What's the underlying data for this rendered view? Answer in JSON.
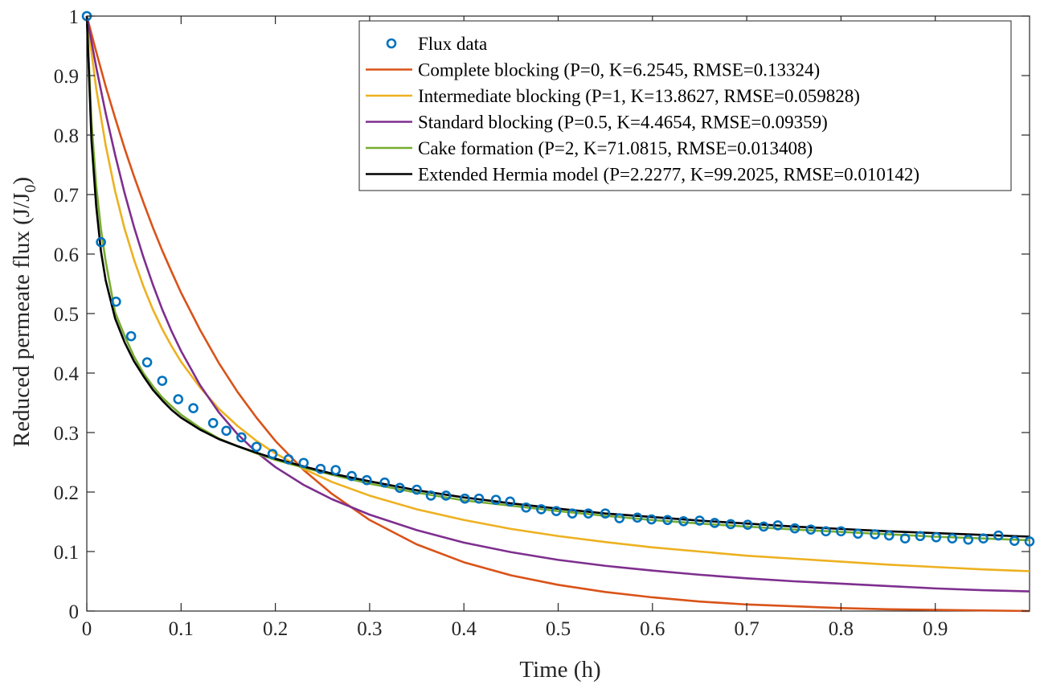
{
  "chart_data": {
    "type": "line",
    "xlabel": "Time (h)",
    "ylabel_main": "Reduced permeate flux (J/J",
    "ylabel_sub": "0",
    "ylabel_close": ")",
    "xlim": [
      0,
      1
    ],
    "ylim": [
      0,
      1
    ],
    "x_ticks": [
      0,
      0.1,
      0.2,
      0.3,
      0.4,
      0.5,
      0.6,
      0.7,
      0.8,
      0.9
    ],
    "x_tick_labels": [
      "0",
      "0.1",
      "0.2",
      "0.3",
      "0.4",
      "0.5",
      "0.6",
      "0.7",
      "0.8",
      "0.9"
    ],
    "y_ticks": [
      0,
      0.1,
      0.2,
      0.3,
      0.4,
      0.5,
      0.6,
      0.7,
      0.8,
      0.9,
      1
    ],
    "y_tick_labels": [
      "0",
      "0.1",
      "0.2",
      "0.3",
      "0.4",
      "0.5",
      "0.6",
      "0.7",
      "0.8",
      "0.9",
      "1"
    ],
    "grid": false,
    "legend_position": "top-right",
    "scatter": {
      "name": "Flux data",
      "color": "#0072BD",
      "x": [
        0,
        0.015,
        0.031,
        0.047,
        0.064,
        0.08,
        0.097,
        0.113,
        0.134,
        0.148,
        0.164,
        0.18,
        0.197,
        0.214,
        0.23,
        0.248,
        0.264,
        0.281,
        0.297,
        0.316,
        0.332,
        0.35,
        0.365,
        0.381,
        0.401,
        0.416,
        0.434,
        0.449,
        0.466,
        0.482,
        0.498,
        0.515,
        0.532,
        0.55,
        0.565,
        0.584,
        0.599,
        0.616,
        0.633,
        0.65,
        0.666,
        0.683,
        0.701,
        0.718,
        0.733,
        0.751,
        0.768,
        0.784,
        0.8,
        0.818,
        0.836,
        0.851,
        0.868,
        0.884,
        0.901,
        0.918,
        0.935,
        0.951,
        0.967,
        0.984,
        1.0
      ],
      "y": [
        1.0,
        0.62,
        0.52,
        0.462,
        0.418,
        0.387,
        0.356,
        0.341,
        0.316,
        0.303,
        0.292,
        0.276,
        0.264,
        0.255,
        0.249,
        0.239,
        0.237,
        0.227,
        0.22,
        0.216,
        0.207,
        0.204,
        0.194,
        0.194,
        0.189,
        0.189,
        0.187,
        0.184,
        0.174,
        0.171,
        0.168,
        0.164,
        0.164,
        0.164,
        0.156,
        0.157,
        0.154,
        0.153,
        0.151,
        0.152,
        0.148,
        0.146,
        0.145,
        0.142,
        0.144,
        0.139,
        0.137,
        0.134,
        0.134,
        0.13,
        0.129,
        0.127,
        0.122,
        0.126,
        0.124,
        0.122,
        0.12,
        0.122,
        0.127,
        0.118,
        0.117
      ]
    },
    "series": [
      {
        "name": "Complete blocking (P=0, K=6.2545, RMSE=0.13324)",
        "color": "#D95319",
        "x": [
          0,
          0.01,
          0.02,
          0.03,
          0.04,
          0.05,
          0.06,
          0.07,
          0.08,
          0.09,
          0.1,
          0.12,
          0.14,
          0.16,
          0.18,
          0.2,
          0.23,
          0.26,
          0.3,
          0.35,
          0.4,
          0.45,
          0.5,
          0.55,
          0.6,
          0.65,
          0.7,
          0.75,
          0.8,
          0.85,
          0.9,
          0.95,
          1.0
        ],
        "y": [
          1.0,
          0.94,
          0.882,
          0.829,
          0.778,
          0.731,
          0.687,
          0.645,
          0.606,
          0.57,
          0.535,
          0.473,
          0.417,
          0.368,
          0.325,
          0.286,
          0.237,
          0.197,
          0.153,
          0.112,
          0.082,
          0.06,
          0.044,
          0.032,
          0.023,
          0.016,
          0.011,
          0.008,
          0.005,
          0.003,
          0.002,
          0.001,
          0.0
        ]
      },
      {
        "name": "Intermediate blocking (P=1, K=13.8627, RMSE=0.059828)",
        "color": "#EDB120",
        "x": [
          0,
          0.01,
          0.02,
          0.03,
          0.04,
          0.05,
          0.06,
          0.07,
          0.08,
          0.09,
          0.1,
          0.12,
          0.14,
          0.16,
          0.18,
          0.2,
          0.23,
          0.26,
          0.3,
          0.35,
          0.4,
          0.45,
          0.5,
          0.55,
          0.6,
          0.65,
          0.7,
          0.75,
          0.8,
          0.85,
          0.9,
          0.95,
          1.0
        ],
        "y": [
          1.0,
          0.878,
          0.783,
          0.706,
          0.643,
          0.591,
          0.546,
          0.507,
          0.474,
          0.445,
          0.419,
          0.376,
          0.34,
          0.311,
          0.286,
          0.265,
          0.239,
          0.217,
          0.194,
          0.171,
          0.153,
          0.138,
          0.126,
          0.116,
          0.107,
          0.1,
          0.093,
          0.088,
          0.083,
          0.078,
          0.074,
          0.07,
          0.067
        ]
      },
      {
        "name": "Standard blocking (P=0.5, K=4.4654, RMSE=0.09359)",
        "color": "#7E2F8E",
        "x": [
          0,
          0.01,
          0.02,
          0.03,
          0.04,
          0.05,
          0.06,
          0.07,
          0.08,
          0.09,
          0.1,
          0.12,
          0.14,
          0.16,
          0.18,
          0.2,
          0.23,
          0.26,
          0.3,
          0.35,
          0.4,
          0.45,
          0.5,
          0.55,
          0.6,
          0.65,
          0.7,
          0.75,
          0.8,
          0.85,
          0.9,
          0.95,
          1.0
        ],
        "y": [
          1.0,
          0.914,
          0.837,
          0.767,
          0.703,
          0.646,
          0.595,
          0.549,
          0.507,
          0.47,
          0.437,
          0.38,
          0.334,
          0.297,
          0.267,
          0.242,
          0.212,
          0.188,
          0.162,
          0.136,
          0.115,
          0.099,
          0.086,
          0.076,
          0.068,
          0.061,
          0.055,
          0.05,
          0.046,
          0.042,
          0.038,
          0.035,
          0.033
        ]
      },
      {
        "name": "Cake formation (P=2, K=71.0815, RMSE=0.013408)",
        "color": "#77AC30",
        "x": [
          0,
          0.005,
          0.01,
          0.015,
          0.02,
          0.03,
          0.04,
          0.05,
          0.06,
          0.07,
          0.08,
          0.09,
          0.1,
          0.12,
          0.14,
          0.16,
          0.18,
          0.2,
          0.23,
          0.26,
          0.3,
          0.35,
          0.4,
          0.45,
          0.5,
          0.55,
          0.6,
          0.65,
          0.7,
          0.75,
          0.8,
          0.85,
          0.9,
          0.95,
          1.0
        ],
        "y": [
          1.0,
          0.822,
          0.714,
          0.642,
          0.588,
          0.502,
          0.463,
          0.428,
          0.4,
          0.378,
          0.359,
          0.344,
          0.33,
          0.308,
          0.29,
          0.277,
          0.265,
          0.254,
          0.241,
          0.229,
          0.214,
          0.199,
          0.186,
          0.177,
          0.168,
          0.16,
          0.153,
          0.147,
          0.142,
          0.137,
          0.133,
          0.129,
          0.125,
          0.122,
          0.119
        ]
      },
      {
        "name": "Extended Hermia model (P=2.2277, K=99.2025, RMSE=0.010142)",
        "color": "#000000",
        "x": [
          0,
          0.005,
          0.01,
          0.015,
          0.02,
          0.03,
          0.04,
          0.05,
          0.06,
          0.07,
          0.08,
          0.09,
          0.1,
          0.12,
          0.14,
          0.16,
          0.18,
          0.2,
          0.23,
          0.26,
          0.3,
          0.35,
          0.4,
          0.45,
          0.5,
          0.55,
          0.6,
          0.65,
          0.7,
          0.75,
          0.8,
          0.85,
          0.9,
          0.95,
          1.0
        ],
        "y": [
          1.0,
          0.79,
          0.68,
          0.605,
          0.556,
          0.492,
          0.452,
          0.42,
          0.395,
          0.372,
          0.354,
          0.338,
          0.325,
          0.305,
          0.289,
          0.277,
          0.266,
          0.256,
          0.243,
          0.231,
          0.218,
          0.203,
          0.191,
          0.181,
          0.172,
          0.164,
          0.158,
          0.152,
          0.147,
          0.142,
          0.138,
          0.134,
          0.131,
          0.128,
          0.125
        ]
      }
    ]
  }
}
